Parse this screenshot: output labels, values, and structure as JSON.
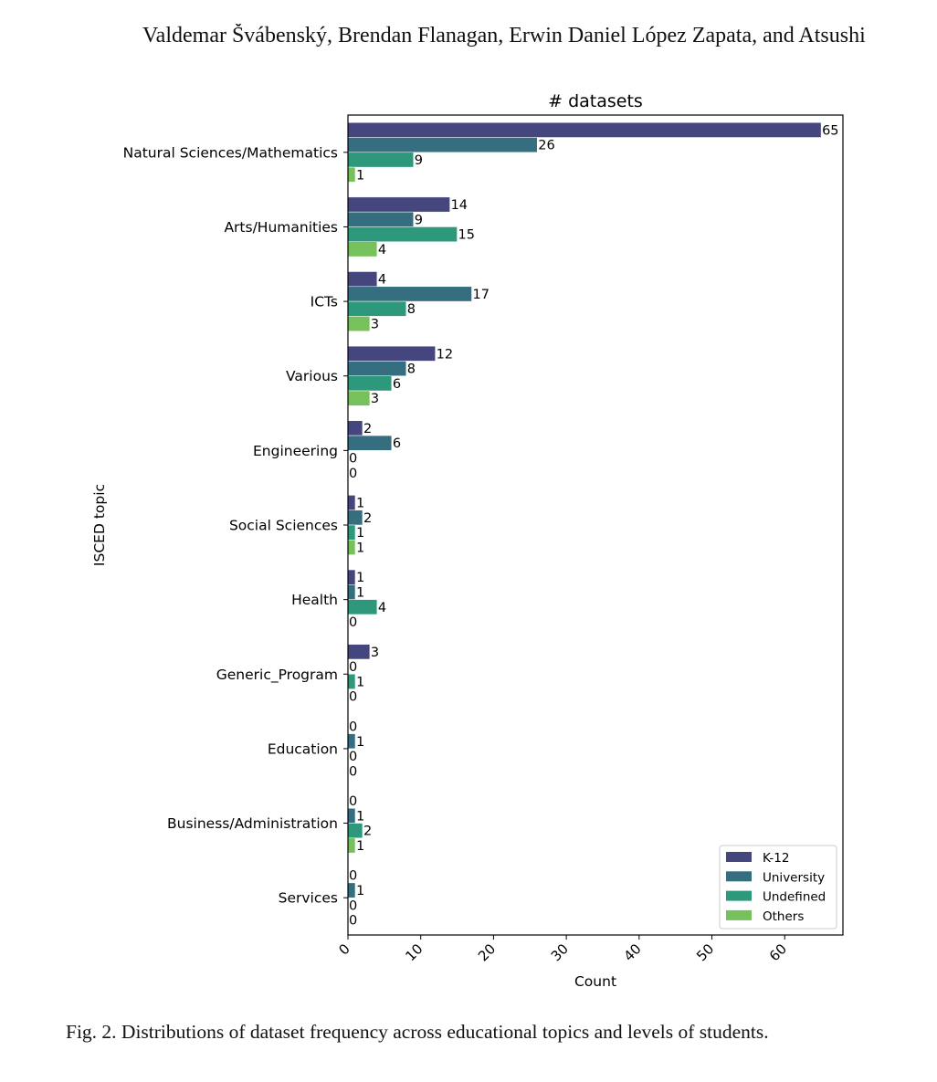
{
  "page": {
    "header": "Valdemar Švábenský, Brendan Flanagan, Erwin Daniel López Zapata, and Atsushi",
    "caption": "Fig. 2.  Distributions of dataset frequency across educational topics and levels of students."
  },
  "chart_data": {
    "type": "bar",
    "orientation": "horizontal",
    "title": "# datasets",
    "xlabel": "Count",
    "ylabel": "ISCED topic",
    "xlim": [
      0,
      68
    ],
    "xticks": [
      0,
      10,
      20,
      30,
      40,
      50,
      60
    ],
    "grid": false,
    "legend_position": "lower-right",
    "categories": [
      "Natural Sciences/Mathematics",
      "Arts/Humanities",
      "ICTs",
      "Various",
      "Engineering",
      "Social Sciences",
      "Health",
      "Generic_Program",
      "Education",
      "Business/Administration",
      "Services"
    ],
    "series": [
      {
        "name": "K-12",
        "color": "#46467f",
        "values": [
          65,
          14,
          4,
          12,
          2,
          1,
          1,
          3,
          0,
          0,
          0
        ]
      },
      {
        "name": "University",
        "color": "#356e7e",
        "values": [
          26,
          9,
          17,
          8,
          6,
          2,
          1,
          0,
          1,
          1,
          1
        ]
      },
      {
        "name": "Undefined",
        "color": "#2e987c",
        "values": [
          9,
          15,
          8,
          6,
          0,
          1,
          4,
          1,
          0,
          2,
          0
        ]
      },
      {
        "name": "Others",
        "color": "#76c15b",
        "values": [
          1,
          4,
          3,
          3,
          0,
          1,
          0,
          0,
          0,
          1,
          0
        ]
      }
    ]
  }
}
